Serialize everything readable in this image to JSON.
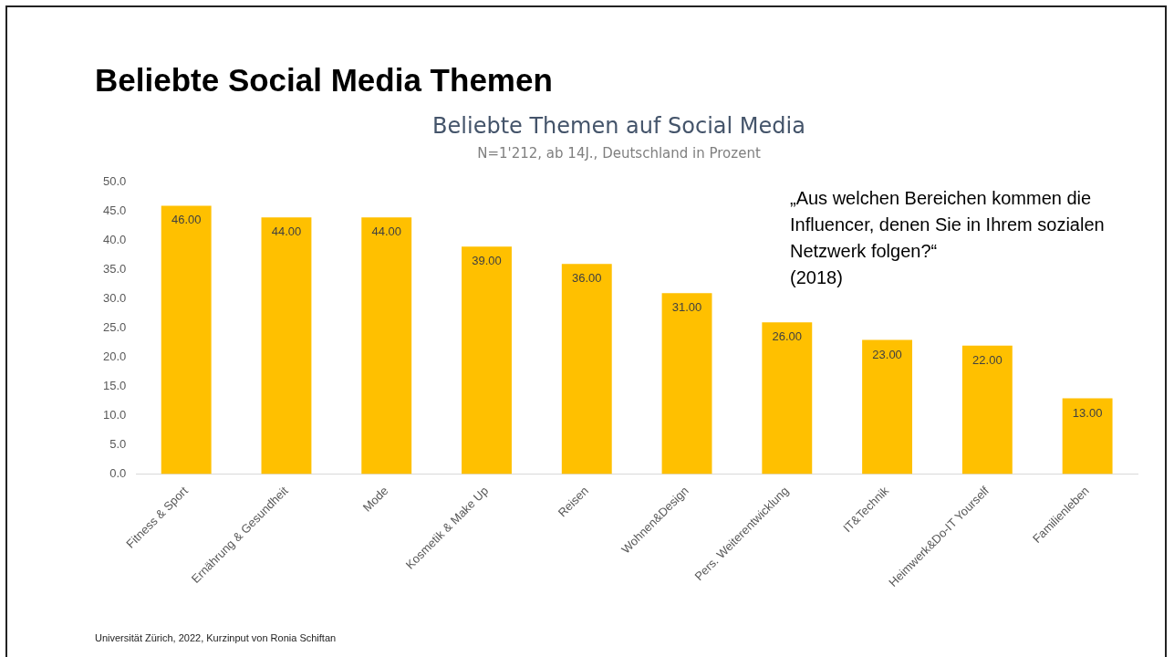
{
  "chart_data": {
    "type": "bar",
    "title": "Beliebte Themen auf Social Media",
    "subtitle": "N=1'212, ab 14J., Deutschland in Prozent",
    "categories": [
      "Fitness & Sport",
      "Ernährung & Gesundheit",
      "Mode",
      "Kosmetik & Make Up",
      "Reisen",
      "Wohnen&Design",
      "Pers. Weiterentwicklung",
      "IT&Technik",
      "Heimwerk&Do-IT Yourself",
      "Familienleben"
    ],
    "values": [
      46,
      44,
      44,
      39,
      36,
      31,
      26,
      23,
      22,
      13
    ],
    "value_labels": [
      "46.00",
      "44.00",
      "44.00",
      "39.00",
      "36.00",
      "31.00",
      "26.00",
      "23.00",
      "22.00",
      "13.00"
    ],
    "color": "#ffc000",
    "ylim": [
      0,
      50
    ],
    "yticks": [
      {
        "value": 0,
        "label": "0.0"
      },
      {
        "value": 5,
        "label": "5.0"
      },
      {
        "value": 10,
        "label": "10.0"
      },
      {
        "value": 15,
        "label": "15.0"
      },
      {
        "value": 20,
        "label": "20.0"
      },
      {
        "value": 25,
        "label": "25.0"
      },
      {
        "value": 30,
        "label": "30.0"
      },
      {
        "value": 35,
        "label": "35.0"
      },
      {
        "value": 40,
        "label": "40.0"
      },
      {
        "value": 45,
        "label": "45.0"
      },
      {
        "value": 50,
        "label": "50.0"
      }
    ],
    "grid": false,
    "legend": false,
    "annotations": [
      "Beliebte Social Media Themen",
      "„Aus welchen Bereichen kommen die Influencer, denen Sie in Ihrem sozialen Netzwerk folgen?“\n(2018)",
      "Universität Zürich, 2022, Kurzinput von Ronia Schiftan"
    ]
  }
}
